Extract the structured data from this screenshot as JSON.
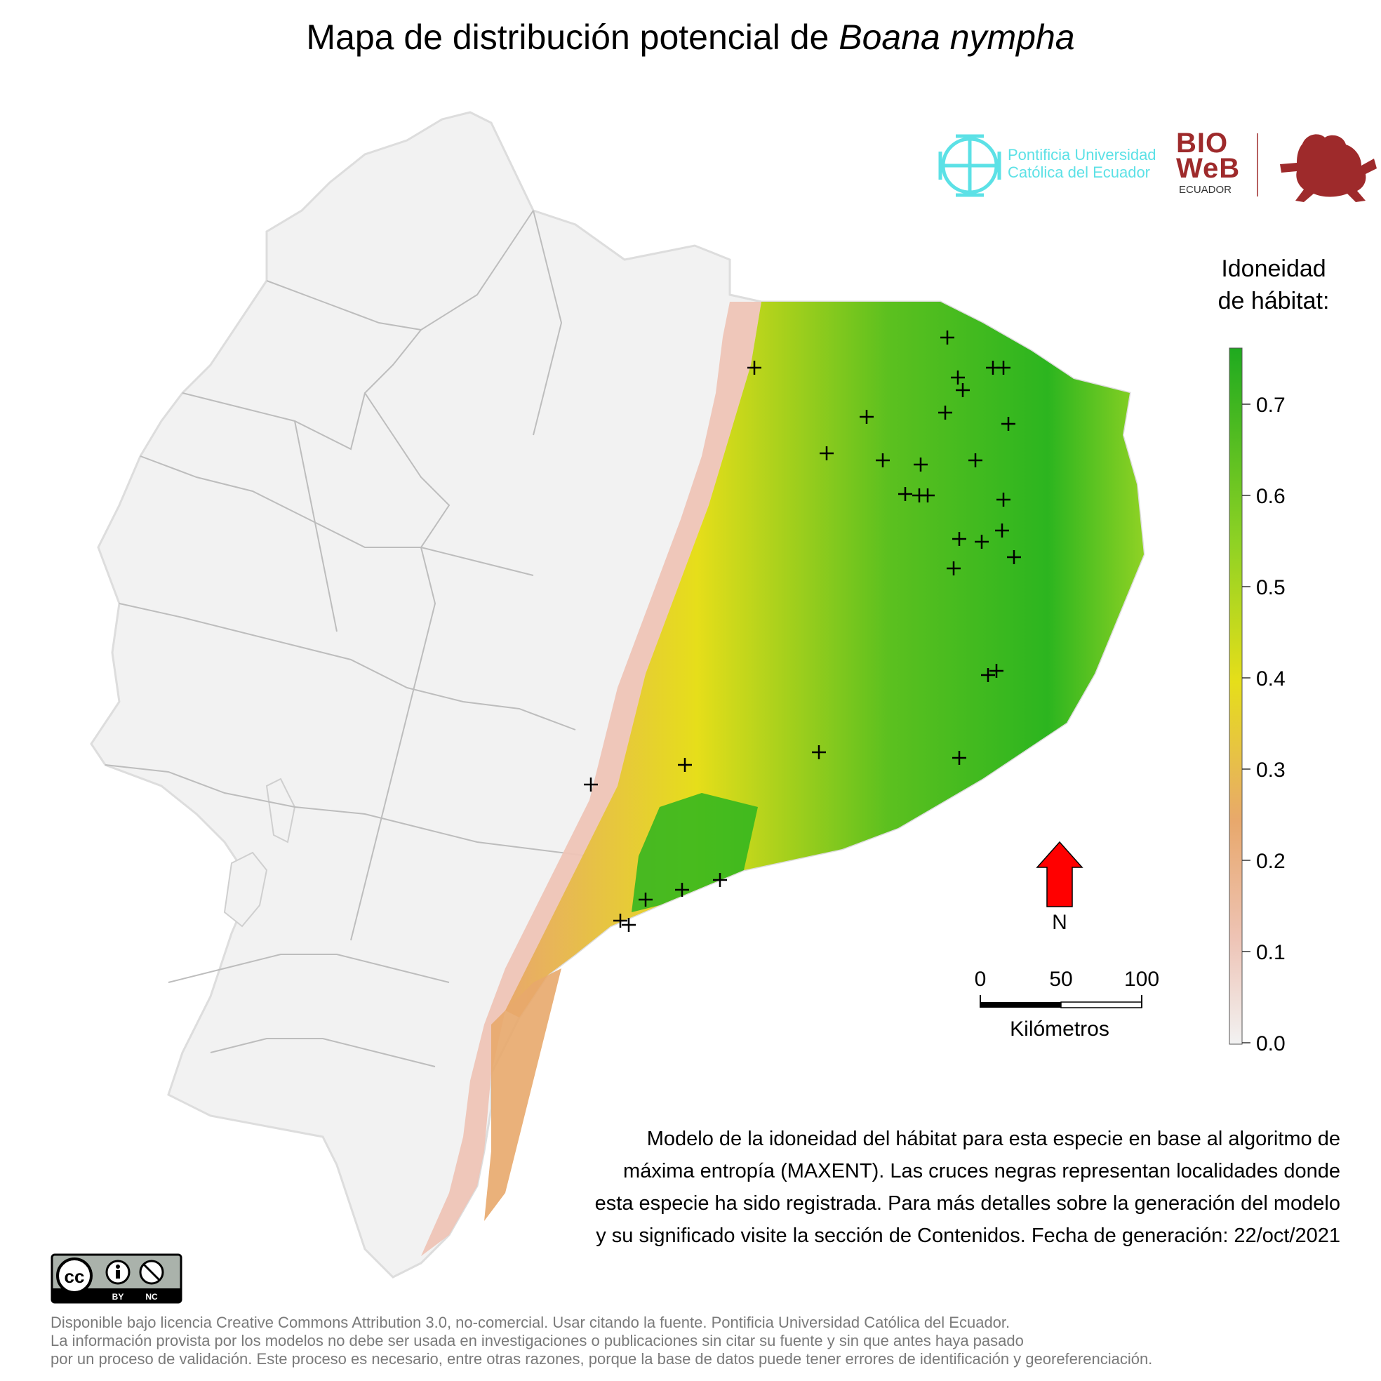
{
  "title": {
    "prefix": "Mapa de distribución potencial de ",
    "species": "Boana nympha"
  },
  "legend": {
    "title_line1": "Idoneidad",
    "title_line2": "de hábitat:",
    "ticks": [
      "0.7",
      "0.6",
      "0.5",
      "0.4",
      "0.3",
      "0.2",
      "0.1",
      "0.0"
    ],
    "colors": [
      "#f2f2f2",
      "#eec4b6",
      "#e8a86c",
      "#e6de1a",
      "#8fd224",
      "#1faa1f"
    ]
  },
  "logos": {
    "puce_line1": "Pontificia Universidad",
    "puce_line2": "Católica del Ecuador",
    "bioweb_line1": "BIO",
    "bioweb_line2": "WeB",
    "bioweb_sub": "ECUADOR",
    "puce_color": "#5ce1e6",
    "bioweb_color": "#9e2a2b"
  },
  "north": {
    "label": "N",
    "color": "#ff0000"
  },
  "scale": {
    "ticks": [
      "0",
      "50",
      "100"
    ],
    "label": "Kilómetros"
  },
  "caption": {
    "line1": "Modelo de la idoneidad del hábitat para esta especie en base al algoritmo de",
    "line2": "máxima entropía (MAXENT). Las cruces negras representan localidades donde",
    "line3": "esta especie ha sido registrada. Para más detalles sobre la generación del modelo",
    "line4": "y su significado visite la sección de Contenidos. Fecha de generación: 22/oct/2021"
  },
  "license": {
    "badge_cc": "cc",
    "badge_by": "BY",
    "badge_nc": "NC",
    "line1": "Disponible bajo licencia Creative Commons Attribution 3.0, no-comercial. Usar citando la fuente. Pontificia Universidad Católica del Ecuador.",
    "line2": "La información provista por los modelos no debe ser usada en investigaciones o publicaciones sin citar su fuente y sin que antes haya pasado",
    "line3": "por un proceso de validación. Este proceso es necesario, entre otras razones, porque la base de datos puede tener errores de identificación y georeferenciación."
  }
}
